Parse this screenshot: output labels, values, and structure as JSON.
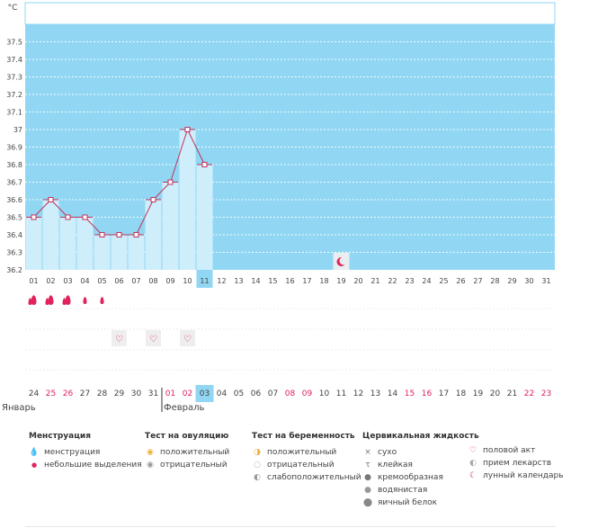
{
  "chart_data": {
    "type": "line",
    "unit": "°C",
    "ylim": [
      36.2,
      37.6
    ],
    "yticks": [
      "36.2",
      "36.3",
      "36.4",
      "36.5",
      "36.6",
      "36.7",
      "36.8",
      "36.9",
      "37",
      "37.1",
      "37.2",
      "37.3",
      "37.4",
      "37.5"
    ],
    "cycle_days": [
      "01",
      "02",
      "03",
      "04",
      "05",
      "06",
      "07",
      "08",
      "09",
      "10",
      "11",
      "12",
      "13",
      "14",
      "15",
      "16",
      "17",
      "18",
      "19",
      "20",
      "21",
      "22",
      "23",
      "24",
      "25",
      "26",
      "27",
      "28",
      "29",
      "30",
      "31"
    ],
    "temperatures": [
      36.5,
      36.6,
      36.5,
      36.5,
      36.4,
      36.4,
      36.4,
      36.6,
      36.7,
      37.0,
      36.8,
      null,
      null,
      null,
      null,
      null,
      null,
      null,
      null,
      null,
      null,
      null,
      null,
      null,
      null,
      null,
      null,
      null,
      null,
      null,
      null
    ],
    "current_day_index": 10,
    "moon_day_index": 18,
    "menstruation": [
      {
        "day_index": 0,
        "kind": "menstruation"
      },
      {
        "day_index": 1,
        "kind": "menstruation"
      },
      {
        "day_index": 2,
        "kind": "menstruation"
      },
      {
        "day_index": 3,
        "kind": "light"
      },
      {
        "day_index": 4,
        "kind": "light"
      }
    ],
    "intercourse_day_indices": [
      5,
      7,
      9
    ],
    "calendar_dates": [
      "24",
      "25",
      "26",
      "27",
      "28",
      "29",
      "30",
      "31",
      "01",
      "02",
      "03",
      "04",
      "05",
      "06",
      "07",
      "08",
      "09",
      "10",
      "11",
      "12",
      "13",
      "14",
      "15",
      "16",
      "17",
      "18",
      "19",
      "20",
      "21",
      "22",
      "23"
    ],
    "highlighted_date_indices": [
      1,
      2,
      8,
      9,
      15,
      16,
      22,
      23,
      29,
      30
    ],
    "month_labels": [
      {
        "label": "Январь",
        "start_index": 0
      },
      {
        "label": "Февраль",
        "start_index": 8
      }
    ]
  },
  "legend": {
    "menstruation": {
      "title": "Менструация",
      "items": [
        {
          "icon": "menstruation-drop-icon",
          "label": "менструация"
        },
        {
          "icon": "light-drop-icon",
          "label": "небольшие выделения"
        }
      ]
    },
    "ovulation": {
      "title": "Тест на овуляцию",
      "items": [
        {
          "icon": "positive-test-icon",
          "label": "положительный"
        },
        {
          "icon": "negative-test-icon",
          "label": "отрицательный"
        }
      ]
    },
    "pregnancy": {
      "title": "Тест на беременность",
      "items": [
        {
          "icon": "positive-test-icon",
          "label": "положительный"
        },
        {
          "icon": "negative-test-icon",
          "label": "отрицательный"
        },
        {
          "icon": "weak-positive-icon",
          "label": "слабоположительный"
        }
      ]
    },
    "cervical": {
      "title": "Цервикальная жидкость",
      "items": [
        {
          "icon": "dry-icon",
          "label": "сухо"
        },
        {
          "icon": "sticky-icon",
          "label": "клейкая"
        },
        {
          "icon": "creamy-icon",
          "label": "кремообразная"
        },
        {
          "icon": "watery-icon",
          "label": "водянистая"
        },
        {
          "icon": "egg-white-icon",
          "label": "яичный белок"
        }
      ]
    },
    "other": {
      "items": [
        {
          "icon": "heart-icon",
          "label": "половой акт"
        },
        {
          "icon": "medication-icon",
          "label": "прием лекарств"
        },
        {
          "icon": "moon-icon",
          "label": "лунный календарь"
        }
      ]
    }
  },
  "colors": {
    "sky": "#91d7f3",
    "bar": "#cfeefc",
    "line": "#c0325a",
    "accent": "#e0235a",
    "current_day": "#91d7f3"
  }
}
